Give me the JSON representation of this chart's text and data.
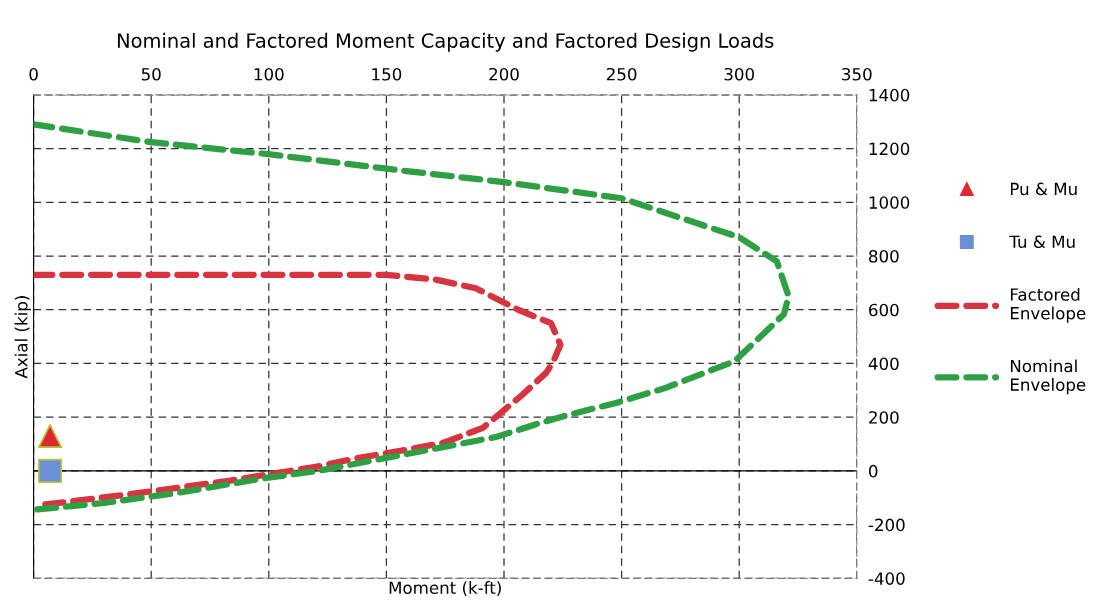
{
  "chart_data": {
    "type": "line",
    "title": "Nominal and Factored Moment Capacity and Factored Design Loads",
    "xlabel": "Moment (k-ft)",
    "ylabel": "Axial (kip)",
    "xlim": [
      0,
      350
    ],
    "xticks": [
      0,
      50,
      100,
      150,
      200,
      250,
      300,
      350
    ],
    "ylim": [
      -400,
      1400
    ],
    "yticks": [
      -400,
      -200,
      0,
      200,
      400,
      600,
      800,
      1000,
      1200,
      1400
    ],
    "grid": true,
    "legend": "right",
    "ref_lines": [
      {
        "axis": "y",
        "value": 0,
        "color": "#000000",
        "line_style": "solid"
      }
    ],
    "series": [
      {
        "name": "Pu & Mu",
        "type": "scatter",
        "marker": "triangle",
        "color": "#e0262f",
        "x": [
          7
        ],
        "values": [
          130
        ]
      },
      {
        "name": "Tu & Mu",
        "type": "scatter",
        "marker": "square",
        "color": "#6b8fd6",
        "x": [
          7
        ],
        "values": [
          0
        ]
      },
      {
        "name": "Factored Envelope",
        "line_style": "dashed",
        "color": "#d8343f",
        "x": [
          0,
          50,
          100,
          150,
          171,
          188,
          206,
          220,
          224,
          221,
          218,
          208,
          191,
          174,
          156,
          136,
          120,
          101,
          83,
          45,
          25,
          5
        ],
        "values": [
          730,
          730,
          730,
          730,
          712,
          680,
          600,
          550,
          470,
          408,
          366,
          285,
          160,
          104,
          75,
          45,
          15,
          -11,
          -37,
          -82,
          -104,
          -125
        ]
      },
      {
        "name": "Nominal Envelope",
        "line_style": "dashed",
        "color": "#2ea043",
        "x": [
          0,
          50,
          100,
          150,
          200,
          250,
          300,
          316,
          321,
          319,
          298,
          289,
          269,
          248,
          228,
          214,
          197,
          152,
          121,
          99,
          61,
          30,
          0
        ],
        "values": [
          1290,
          1224,
          1179,
          1125,
          1075,
          1015,
          870,
          780,
          650,
          583,
          408,
          378,
          310,
          254,
          210,
          175,
          127,
          52,
          0,
          -26,
          -82,
          -119,
          -145
        ]
      }
    ]
  }
}
